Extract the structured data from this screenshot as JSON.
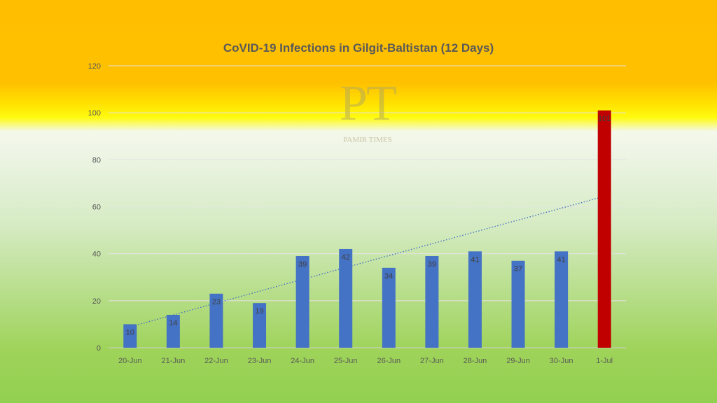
{
  "chart_data": {
    "type": "bar",
    "title": "CoVID-19 Infections in Gilgit-Baltistan (12 Days)",
    "categories": [
      "20-Jun",
      "21-Jun",
      "22-Jun",
      "23-Jun",
      "24-Jun",
      "25-Jun",
      "26-Jun",
      "27-Jun",
      "28-Jun",
      "29-Jun",
      "30-Jun",
      "1-Jul"
    ],
    "values": [
      10,
      14,
      23,
      19,
      39,
      42,
      34,
      39,
      41,
      37,
      41,
      101
    ],
    "data_labels": [
      "10",
      "14",
      "23",
      "19",
      "39",
      "42",
      "34",
      "39",
      "41",
      "37",
      "41",
      "101"
    ],
    "yticks": [
      0,
      20,
      40,
      60,
      80,
      100,
      120
    ],
    "ylim": [
      0,
      120
    ],
    "bar_color": "#4472c4",
    "highlight_color": "#c00000",
    "highlight_index": 11,
    "trendline": {
      "type": "linear",
      "style": "dotted",
      "color": "#4472c4"
    },
    "grid": true,
    "legend": "none"
  },
  "watermark": {
    "letters": "PT",
    "name": "PAMIR TIMES"
  }
}
